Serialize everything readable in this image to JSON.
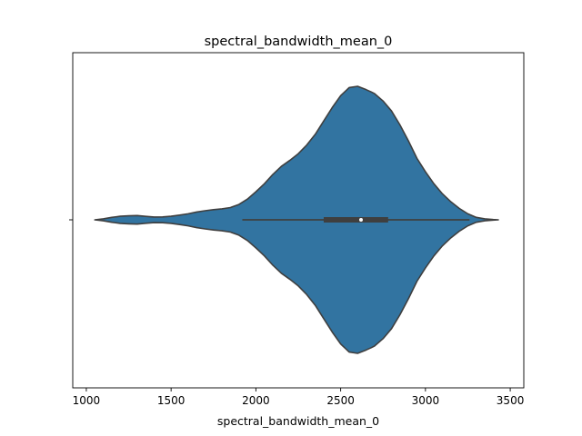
{
  "chart_data": {
    "type": "violin",
    "title": "spectral_bandwidth_mean_0",
    "xlabel": "spectral_bandwidth_mean_0",
    "ylabel": "",
    "xlim": [
      920,
      3580
    ],
    "x_ticks": [
      1000,
      1500,
      2000,
      2500,
      3000,
      3500
    ],
    "x_tick_labels": [
      "1000",
      "1500",
      "2000",
      "2500",
      "3000",
      "3500"
    ],
    "y_ticks": [
      ""
    ],
    "grid": false,
    "legend": "none",
    "violin_color": "#3274a1",
    "edge_color": "#3f3f3f",
    "density": {
      "x": [
        1050,
        1100,
        1150,
        1200,
        1250,
        1300,
        1350,
        1400,
        1450,
        1500,
        1550,
        1600,
        1650,
        1700,
        1750,
        1800,
        1850,
        1900,
        1950,
        2000,
        2050,
        2100,
        2150,
        2200,
        2250,
        2300,
        2350,
        2400,
        2450,
        2500,
        2550,
        2600,
        2650,
        2680,
        2700,
        2750,
        2800,
        2850,
        2900,
        2950,
        3000,
        3050,
        3100,
        3150,
        3200,
        3250,
        3300,
        3350,
        3400,
        3430
      ],
      "y": [
        0.0,
        0.007,
        0.018,
        0.027,
        0.03,
        0.032,
        0.026,
        0.021,
        0.022,
        0.027,
        0.035,
        0.045,
        0.058,
        0.068,
        0.076,
        0.082,
        0.092,
        0.115,
        0.155,
        0.21,
        0.27,
        0.34,
        0.4,
        0.445,
        0.495,
        0.56,
        0.64,
        0.74,
        0.84,
        0.93,
        0.99,
        1.0,
        0.975,
        0.958,
        0.945,
        0.89,
        0.815,
        0.71,
        0.59,
        0.46,
        0.36,
        0.27,
        0.195,
        0.135,
        0.085,
        0.045,
        0.018,
        0.007,
        0.002,
        0.0
      ]
    },
    "box": {
      "whisker_low": 1920,
      "q1": 2400,
      "median": 2620,
      "q3": 2780,
      "whisker_high": 3260
    }
  }
}
